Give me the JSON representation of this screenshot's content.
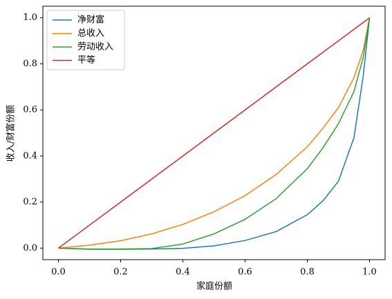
{
  "chart_data": {
    "type": "line",
    "xlabel": "家庭份额",
    "ylabel": "收入/财富份额",
    "x": [
      0,
      0.1,
      0.2,
      0.3,
      0.4,
      0.5,
      0.6,
      0.7,
      0.8,
      0.85,
      0.9,
      0.95,
      0.98,
      1.0
    ],
    "series": [
      {
        "name": "净财富",
        "color": "#1f77b4",
        "values": [
          0,
          -0.005,
          -0.005,
          -0.004,
          -0.001,
          0.01,
          0.033,
          0.072,
          0.145,
          0.205,
          0.29,
          0.48,
          0.75,
          1.0
        ]
      },
      {
        "name": "总收入",
        "color": "#ff7f0e",
        "values": [
          0,
          0.013,
          0.032,
          0.062,
          0.103,
          0.158,
          0.228,
          0.32,
          0.44,
          0.52,
          0.61,
          0.74,
          0.86,
          1.0
        ]
      },
      {
        "name": "劳动收入",
        "color": "#2ca02c",
        "values": [
          0,
          -0.004,
          -0.004,
          -0.002,
          0.018,
          0.062,
          0.125,
          0.215,
          0.345,
          0.435,
          0.54,
          0.68,
          0.83,
          1.0
        ]
      },
      {
        "name": "平等",
        "color": "#d62728",
        "values": [
          0,
          0.1,
          0.2,
          0.3,
          0.4,
          0.5,
          0.6,
          0.7,
          0.8,
          0.85,
          0.9,
          0.95,
          0.98,
          1.0
        ]
      }
    ],
    "xlim": [
      -0.05,
      1.05
    ],
    "ylim": [
      -0.05,
      1.05
    ],
    "xticks": [
      {
        "value": 0,
        "label": "0.0"
      },
      0.2,
      0.4,
      0.6,
      0.8,
      {
        "value": 1,
        "label": "1.0"
      }
    ],
    "yticks": [
      {
        "value": 0,
        "label": "0.0"
      },
      0.2,
      0.4,
      0.6,
      0.8,
      {
        "value": 1,
        "label": "1.0"
      }
    ],
    "grid": false,
    "legend": "upper-left"
  }
}
